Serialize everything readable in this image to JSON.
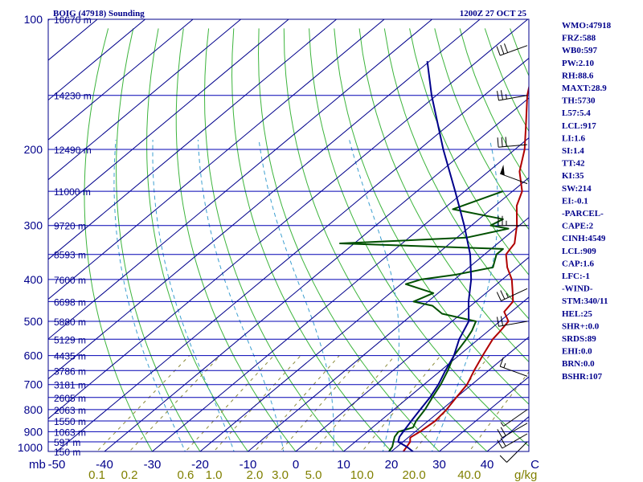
{
  "chart_data": {
    "type": "skew-t sounding",
    "title_left": "BOIG (47918) Sounding",
    "title_right": "1200Z 27 OCT 25",
    "pressure_axis": {
      "unit_label": "mb",
      "range": [
        1000,
        100
      ],
      "ticks": [
        "100",
        "200",
        "300",
        "400",
        "500",
        "600",
        "700",
        "800",
        "900",
        "1000"
      ]
    },
    "temperature_axis": {
      "range": [
        -50,
        50
      ],
      "ticks": [
        {
          "v": -50,
          "label": "-50"
        },
        {
          "v": -40,
          "label": "-40"
        },
        {
          "v": -30,
          "label": "-30"
        },
        {
          "v": -20,
          "label": "-20"
        },
        {
          "v": -10,
          "label": "-10"
        },
        {
          "v": 0,
          "label": "0"
        },
        {
          "v": 10,
          "label": "10"
        },
        {
          "v": 20,
          "label": "20"
        },
        {
          "v": 30,
          "label": "30"
        },
        {
          "v": 40,
          "label": "40"
        },
        {
          "v": 50,
          "label": "C"
        }
      ]
    },
    "mixing_ratio_axis": {
      "unit_label": "g/kg",
      "values": [
        "0.1",
        "0.2",
        "0.6",
        "1.0",
        "2.0",
        "3.0",
        "5.0",
        "10.0",
        "20.0",
        "40.0"
      ]
    },
    "height_levels": [
      {
        "p": 100,
        "label": "16670 m"
      },
      {
        "p": 150,
        "label": "14230 m"
      },
      {
        "p": 200,
        "label": "12490 m"
      },
      {
        "p": 250,
        "label": "11000 m"
      },
      {
        "p": 300,
        "label": "9720 m"
      },
      {
        "p": 350,
        "label": "8593 m"
      },
      {
        "p": 400,
        "label": "7600 m"
      },
      {
        "p": 450,
        "label": "6698 m"
      },
      {
        "p": 500,
        "label": "5880 m"
      },
      {
        "p": 550,
        "label": "5129 m"
      },
      {
        "p": 600,
        "label": "4435 m"
      },
      {
        "p": 650,
        "label": "3786 m"
      },
      {
        "p": 700,
        "label": "3181 m"
      },
      {
        "p": 750,
        "label": "2605 m"
      },
      {
        "p": 800,
        "label": "2063 m"
      },
      {
        "p": 850,
        "label": "1550 m"
      },
      {
        "p": 900,
        "label": "1063 m"
      },
      {
        "p": 950,
        "label": "597 m"
      },
      {
        "p": 1000,
        "label": "150 m"
      }
    ],
    "series": [
      {
        "name": "temperature",
        "color": "#b00000",
        "points": [
          [
            1000,
            22.5
          ],
          [
            975,
            22
          ],
          [
            950,
            21.5
          ],
          [
            930,
            20.5
          ],
          [
            925,
            20.5
          ],
          [
            900,
            21
          ],
          [
            850,
            21.5
          ],
          [
            800,
            21
          ],
          [
            750,
            20
          ],
          [
            700,
            19
          ],
          [
            650,
            17
          ],
          [
            600,
            15
          ],
          [
            550,
            13
          ],
          [
            525,
            12.5
          ],
          [
            500,
            11.8
          ],
          [
            475,
            8.5
          ],
          [
            450,
            7.8
          ],
          [
            425,
            5
          ],
          [
            400,
            2
          ],
          [
            375,
            -2
          ],
          [
            350,
            -5.5
          ],
          [
            340,
            -6
          ],
          [
            330,
            -6.5
          ],
          [
            300,
            -10.5
          ],
          [
            270,
            -15.5
          ],
          [
            250,
            -18
          ],
          [
            225,
            -23.5
          ],
          [
            200,
            -28
          ],
          [
            175,
            -34
          ],
          [
            150,
            -41
          ],
          [
            125,
            -48
          ],
          [
            100,
            -54
          ]
        ]
      },
      {
        "name": "dewpoint",
        "color": "#005000",
        "points": [
          [
            1000,
            19.5
          ],
          [
            975,
            19
          ],
          [
            950,
            18
          ],
          [
            925,
            17
          ],
          [
            900,
            16.5
          ],
          [
            880,
            18.5
          ],
          [
            850,
            17.5
          ],
          [
            800,
            16.5
          ],
          [
            750,
            15
          ],
          [
            700,
            13.5
          ],
          [
            650,
            11.5
          ],
          [
            600,
            9
          ],
          [
            550,
            7.5
          ],
          [
            525,
            6.5
          ],
          [
            500,
            5
          ],
          [
            480,
            -4
          ],
          [
            460,
            -8
          ],
          [
            450,
            -13
          ],
          [
            430,
            -11
          ],
          [
            410,
            -19
          ],
          [
            400,
            -17
          ],
          [
            390,
            -11
          ],
          [
            375,
            -5
          ],
          [
            350,
            -7.5
          ],
          [
            340,
            -7.5
          ],
          [
            330,
            -43
          ],
          [
            320,
            -18
          ],
          [
            305,
            -11.5
          ],
          [
            300,
            -16
          ],
          [
            290,
            -15
          ],
          [
            275,
            -28
          ],
          [
            250,
            -22
          ]
        ]
      },
      {
        "name": "parcel",
        "color": "#00008b",
        "points": [
          [
            1000,
            24.5
          ],
          [
            975,
            22
          ],
          [
            950,
            19
          ],
          [
            925,
            18
          ],
          [
            900,
            17.5
          ],
          [
            850,
            16.5
          ],
          [
            800,
            15.5
          ],
          [
            750,
            14.5
          ],
          [
            700,
            13
          ],
          [
            650,
            11
          ],
          [
            600,
            9
          ],
          [
            550,
            6
          ],
          [
            500,
            3.5
          ],
          [
            450,
            -1.5
          ],
          [
            400,
            -6.5
          ],
          [
            350,
            -13
          ],
          [
            300,
            -21.5
          ],
          [
            250,
            -32
          ],
          [
            200,
            -45
          ],
          [
            150,
            -61
          ],
          [
            125,
            -70.5
          ]
        ]
      }
    ],
    "wind_barbs": [
      {
        "p": 115,
        "dir": 250,
        "kt": 30
      },
      {
        "p": 150,
        "dir": 260,
        "kt": 25
      },
      {
        "p": 195,
        "dir": 265,
        "kt": 30
      },
      {
        "p": 240,
        "dir": 290,
        "kt": 50
      },
      {
        "p": 300,
        "dir": 270,
        "kt": 25
      },
      {
        "p": 420,
        "dir": 245,
        "kt": 25
      },
      {
        "p": 500,
        "dir": 260,
        "kt": 20
      },
      {
        "p": 670,
        "dir": 290,
        "kt": 15
      },
      {
        "p": 800,
        "dir": 235,
        "kt": 5
      },
      {
        "p": 860,
        "dir": 240,
        "kt": 20
      },
      {
        "p": 910,
        "dir": 240,
        "kt": 20
      },
      {
        "p": 950,
        "dir": 225,
        "kt": 10
      }
    ]
  },
  "indices": [
    "WMO:47918",
    "FRZ:588",
    "WB0:597",
    "PW:2.10",
    "RH:88.6",
    "MAXT:28.9",
    "TH:5730",
    "L57:5.4",
    "LCL:917",
    "LI:1.6",
    "SI:1.4",
    "TT:42",
    "KI:35",
    "SW:214",
    "EI:-0.1",
    "-PARCEL-",
    "CAPE:2",
    "CINH:4549",
    "LCL:909",
    "CAP:1.6",
    "LFC:-1",
    "-WIND-",
    "STM:340/11",
    "HEL:25",
    "SHR+:0.0",
    "SRDS:89",
    "EHI:0.0",
    "BRN:0.0",
    "BSHR:107"
  ]
}
